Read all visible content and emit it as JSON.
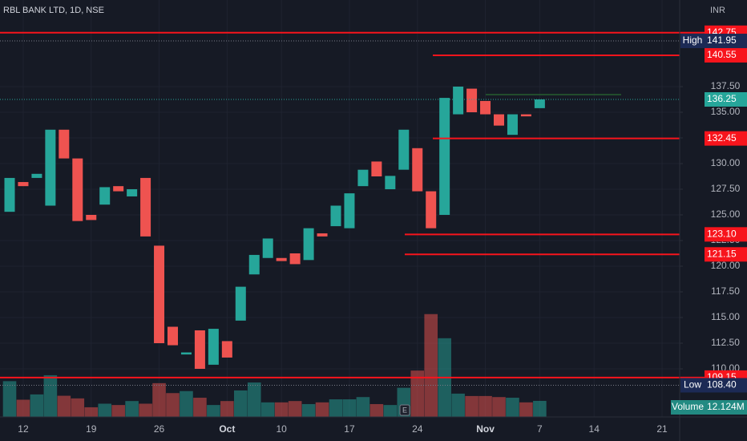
{
  "chart_data": {
    "type": "candlestick",
    "title": "RBL BANK LTD, 1D, NSE",
    "currency": "INR",
    "up_color": "#26a69a",
    "down_color": "#ef5350",
    "level_color": "#f7141c",
    "categories": [
      null,
      "12",
      null,
      null,
      null,
      null,
      "19",
      null,
      null,
      null,
      null,
      "26",
      null,
      null,
      null,
      null,
      "Oct",
      null,
      null,
      null,
      "10",
      null,
      null,
      null,
      null,
      "17",
      null,
      null,
      null,
      null,
      "24",
      null,
      null,
      null,
      null,
      "Nov",
      null,
      null,
      null,
      "7",
      null,
      null,
      null,
      "14",
      null,
      null,
      null,
      null,
      "21"
    ],
    "open": [
      125.3,
      128.2,
      128.6,
      125.9,
      133.3,
      130.5,
      125.0,
      126.0,
      127.8,
      126.8,
      128.6,
      122.0,
      114.1,
      111.4,
      113.75,
      110.4,
      112.7,
      114.7,
      119.2,
      120.8,
      120.8,
      121.25,
      120.6,
      123.2,
      123.9,
      123.7,
      127.8,
      130.2,
      127.5,
      129.4,
      131.5,
      127.3,
      125.0,
      134.8,
      137.3,
      136.1,
      134.8,
      132.8,
      134.8,
      135.4,
      null,
      null,
      null,
      null,
      null,
      null,
      null,
      null,
      null
    ],
    "high": 141.95,
    "low": {
      "value": 108.4,
      "label": "108.40"
    },
    "close": [
      128.6,
      127.8,
      129.0,
      133.3,
      130.5,
      124.4,
      124.5,
      127.7,
      127.3,
      127.5,
      122.9,
      112.5,
      112.3,
      111.6,
      110.0,
      113.9,
      111.1,
      118.0,
      121.1,
      122.7,
      120.5,
      120.2,
      123.7,
      122.9,
      125.9,
      127.1,
      129.4,
      128.75,
      128.8,
      133.3,
      127.3,
      123.7,
      136.4,
      137.5,
      135.0,
      134.8,
      133.7,
      134.8,
      134.6,
      136.25,
      null,
      null,
      null,
      null,
      null,
      null,
      null,
      null,
      null
    ],
    "volume": {
      "name": "Volume",
      "last_label": "12.124M",
      "values": [
        27,
        13,
        17,
        31.5,
        16,
        14,
        7.3,
        10,
        9,
        12,
        10,
        25.5,
        18,
        19.5,
        14.5,
        9,
        12,
        20,
        26,
        11,
        11,
        12,
        9.7,
        11,
        13.3,
        13.3,
        15,
        9.7,
        9,
        22,
        35,
        77.6,
        59.4,
        17.6,
        15.8,
        15.8,
        15,
        14.5,
        11,
        12.124,
        null,
        null,
        null,
        null,
        null,
        null,
        null,
        null,
        null
      ]
    },
    "volume_lim": [
      0,
      121
    ],
    "ylim": [
      105.3125,
      145.9375
    ],
    "yticks": [
      {
        "value": 137.5,
        "label": "137.50"
      },
      {
        "value": 135,
        "label": "135.00"
      },
      {
        "value": 132.5,
        "label": "132.50"
      },
      {
        "value": 130,
        "label": "130.00"
      },
      {
        "value": 127.5,
        "label": "127.50"
      },
      {
        "value": 125,
        "label": "125.00"
      },
      {
        "value": 122.5,
        "label": "122.50"
      },
      {
        "value": 120,
        "label": "120.00"
      },
      {
        "value": 117.5,
        "label": "117.50"
      },
      {
        "value": 115,
        "label": "115.00"
      },
      {
        "value": 112.5,
        "label": "112.50"
      },
      {
        "value": 110,
        "label": "110.00"
      }
    ],
    "grid": true,
    "levels": [
      142.75,
      140.55,
      132.45,
      {
        "value": 123.1,
        "label": "123.10"
      },
      121.15,
      109.15
    ],
    "high_label": "High",
    "low_label": "Low",
    "last": 136.25,
    "event_marker": "E"
  }
}
